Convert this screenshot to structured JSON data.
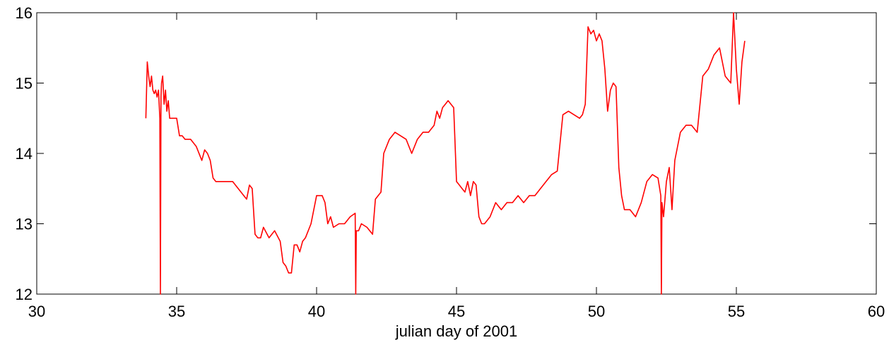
{
  "chart_data": {
    "type": "line",
    "title": "",
    "xlabel": "julian day of 2001",
    "ylabel": "",
    "xlim": [
      30,
      60
    ],
    "ylim": [
      12,
      16
    ],
    "xticks": [
      30,
      35,
      40,
      45,
      50,
      55,
      60
    ],
    "yticks": [
      12,
      13,
      14,
      15,
      16
    ],
    "grid": false,
    "legend": "none",
    "series": [
      {
        "color": "#ff0000",
        "x": [
          33.9,
          33.95,
          34.0,
          34.05,
          34.1,
          34.15,
          34.2,
          34.25,
          34.3,
          34.35,
          34.4,
          34.42,
          34.44,
          34.46,
          34.5,
          34.55,
          34.6,
          34.65,
          34.7,
          34.75,
          34.8,
          34.9,
          35.0,
          35.1,
          35.2,
          35.3,
          35.5,
          35.7,
          35.9,
          36.0,
          36.1,
          36.2,
          36.3,
          36.4,
          36.6,
          36.8,
          37.0,
          37.2,
          37.4,
          37.5,
          37.6,
          37.7,
          37.8,
          37.9,
          38.0,
          38.1,
          38.3,
          38.5,
          38.7,
          38.8,
          38.9,
          39.0,
          39.1,
          39.2,
          39.3,
          39.4,
          39.5,
          39.6,
          39.8,
          40.0,
          40.2,
          40.3,
          40.4,
          40.5,
          40.6,
          40.8,
          41.0,
          41.2,
          41.38,
          41.4,
          41.42,
          41.5,
          41.6,
          41.8,
          42.0,
          42.1,
          42.2,
          42.3,
          42.4,
          42.5,
          42.6,
          42.8,
          43.0,
          43.2,
          43.4,
          43.6,
          43.8,
          44.0,
          44.2,
          44.3,
          44.4,
          44.5,
          44.6,
          44.7,
          44.8,
          44.9,
          45.0,
          45.1,
          45.2,
          45.3,
          45.4,
          45.5,
          45.6,
          45.7,
          45.8,
          45.9,
          46.0,
          46.2,
          46.4,
          46.6,
          46.8,
          47.0,
          47.2,
          47.4,
          47.6,
          47.8,
          48.0,
          48.2,
          48.4,
          48.6,
          48.8,
          49.0,
          49.2,
          49.4,
          49.5,
          49.6,
          49.7,
          49.8,
          49.9,
          50.0,
          50.1,
          50.2,
          50.3,
          50.4,
          50.5,
          50.6,
          50.7,
          50.8,
          50.9,
          51.0,
          51.2,
          51.4,
          51.6,
          51.8,
          52.0,
          52.2,
          52.3,
          52.32,
          52.34,
          52.4,
          52.5,
          52.6,
          52.7,
          52.8,
          53.0,
          53.2,
          53.4,
          53.6,
          53.8,
          54.0,
          54.2,
          54.4,
          54.6,
          54.8,
          54.9,
          55.0,
          55.1,
          55.2,
          55.3
        ],
        "y": [
          14.5,
          15.3,
          15.1,
          14.95,
          15.1,
          14.9,
          14.85,
          14.9,
          14.8,
          14.9,
          14.5,
          12.0,
          14.8,
          15.0,
          15.1,
          14.7,
          14.9,
          14.6,
          14.75,
          14.5,
          14.5,
          14.5,
          14.5,
          14.25,
          14.25,
          14.2,
          14.2,
          14.1,
          13.9,
          14.05,
          14.0,
          13.9,
          13.65,
          13.6,
          13.6,
          13.6,
          13.6,
          13.5,
          13.4,
          13.35,
          13.55,
          13.5,
          12.85,
          12.8,
          12.8,
          12.95,
          12.8,
          12.9,
          12.75,
          12.45,
          12.4,
          12.3,
          12.3,
          12.7,
          12.7,
          12.6,
          12.75,
          12.8,
          13.0,
          13.4,
          13.4,
          13.3,
          13.0,
          13.1,
          12.95,
          13.0,
          13.0,
          13.1,
          13.15,
          12.0,
          12.9,
          12.9,
          13.0,
          12.95,
          12.85,
          13.35,
          13.4,
          13.45,
          14.0,
          14.1,
          14.2,
          14.3,
          14.25,
          14.2,
          14.0,
          14.2,
          14.3,
          14.3,
          14.4,
          14.6,
          14.5,
          14.65,
          14.7,
          14.75,
          14.7,
          14.65,
          13.6,
          13.55,
          13.5,
          13.45,
          13.6,
          13.4,
          13.6,
          13.55,
          13.1,
          13.0,
          13.0,
          13.1,
          13.3,
          13.2,
          13.3,
          13.3,
          13.4,
          13.3,
          13.4,
          13.4,
          13.5,
          13.6,
          13.7,
          13.75,
          14.55,
          14.6,
          14.55,
          14.5,
          14.55,
          14.7,
          15.8,
          15.7,
          15.75,
          15.6,
          15.7,
          15.6,
          15.2,
          14.6,
          14.9,
          15.0,
          14.95,
          13.8,
          13.4,
          13.2,
          13.2,
          13.1,
          13.3,
          13.6,
          13.7,
          13.65,
          13.4,
          12.0,
          13.3,
          13.1,
          13.6,
          13.8,
          13.2,
          13.9,
          14.3,
          14.4,
          14.4,
          14.3,
          15.1,
          15.2,
          15.4,
          15.5,
          15.1,
          15.0,
          16.0,
          15.2,
          14.7,
          15.3,
          15.6
        ]
      }
    ]
  }
}
